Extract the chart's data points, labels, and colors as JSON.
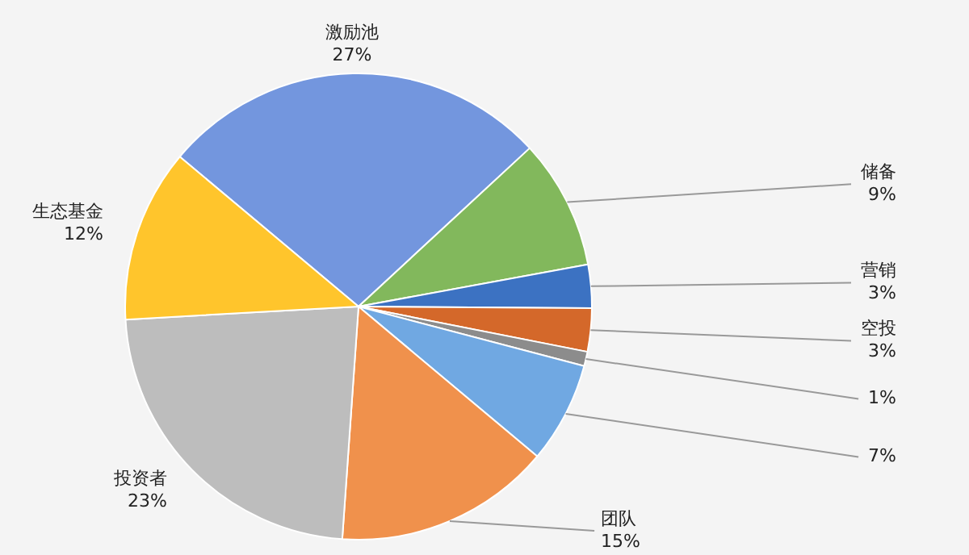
{
  "chart_data": {
    "type": "pie",
    "categories": [
      "激励池",
      "储备",
      "营销",
      "空投",
      null,
      null,
      "团队",
      "投资者",
      "生态基金"
    ],
    "values": [
      27,
      9,
      3,
      3,
      1,
      7,
      15,
      23,
      12
    ],
    "value_labels": [
      "27%",
      "9%",
      "3%",
      "3%",
      "1%",
      "7%",
      "15%",
      "23%",
      "12%"
    ],
    "colors": [
      "#7396de",
      "#82b85c",
      "#3c72c2",
      "#d4682a",
      "#8c8c8c",
      "#70a8e2",
      "#f0914c",
      "#bdbdbd",
      "#ffc52c"
    ],
    "legend": false
  }
}
